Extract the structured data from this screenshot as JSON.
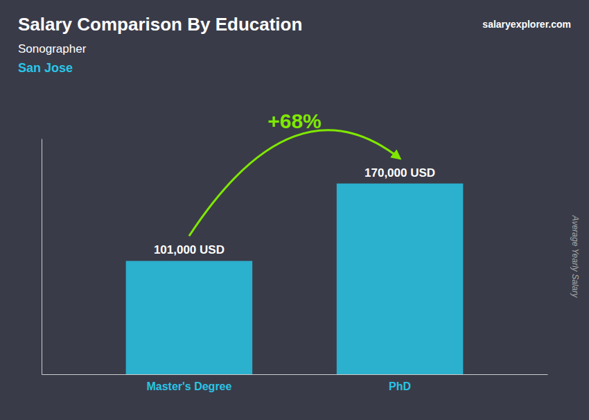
{
  "chart_data": {
    "type": "bar",
    "title": "Salary Comparison By Education",
    "subtitle": "Sonographer",
    "annotations": [
      "San Jose",
      "+68%",
      "salaryexplorer.com"
    ],
    "y_label": "Average Yearly Salary",
    "categories": [
      "Master's Degree",
      "PhD"
    ],
    "values": [
      101000,
      170000
    ],
    "value_labels": [
      "101,000 USD",
      "170,000 USD"
    ],
    "data_labels": true,
    "color": "#29c5e6",
    "ylim": [
      0,
      210000
    ],
    "tick_labels": "x",
    "grid": false
  }
}
